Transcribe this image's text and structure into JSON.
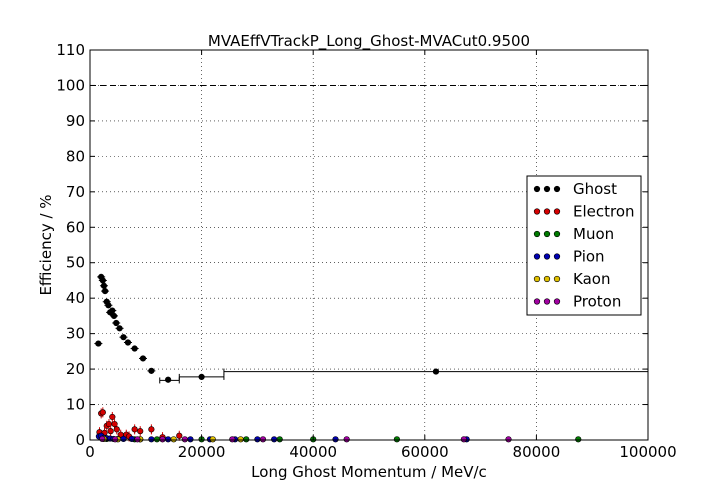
{
  "chart_data": {
    "type": "scatter",
    "title": "MVAEffVTrackP_Long_Ghost-MVACut0.9500",
    "xlabel": "Long Ghost Momentum / MeV/c",
    "ylabel": "Efficiency / %",
    "xlim": [
      0,
      100000
    ],
    "ylim": [
      0,
      110
    ],
    "x_ticks": [
      "0",
      "20000",
      "40000",
      "60000",
      "80000",
      "100000"
    ],
    "y_ticks": [
      "0",
      "10",
      "20",
      "30",
      "40",
      "50",
      "60",
      "70",
      "80",
      "90",
      "100",
      "110"
    ],
    "reference_line": {
      "y": 100,
      "style": "dashed"
    },
    "grid": true,
    "legend_position": "center-right",
    "series": [
      {
        "name": "Ghost",
        "color": "#000000",
        "points": [
          [
            1500,
            27.2
          ],
          [
            2000,
            46
          ],
          [
            2300,
            45
          ],
          [
            2500,
            43.5
          ],
          [
            2700,
            42
          ],
          [
            3000,
            39
          ],
          [
            3300,
            38
          ],
          [
            3600,
            36
          ],
          [
            4000,
            36.5
          ],
          [
            4300,
            35
          ],
          [
            4700,
            33
          ],
          [
            5300,
            31.5
          ],
          [
            6000,
            29
          ],
          [
            6800,
            27.5
          ],
          [
            8000,
            25.8
          ],
          [
            9500,
            23
          ],
          [
            11000,
            19.5
          ],
          [
            14000,
            17
          ],
          [
            20000,
            17.8
          ],
          [
            62000,
            19.3
          ]
        ],
        "bins": [
          [
            12500,
            16000,
            16.8
          ],
          [
            16000,
            24000,
            17.8
          ],
          [
            24000,
            100000,
            19.3
          ]
        ]
      },
      {
        "name": "Electron",
        "color": "#d40000",
        "points": [
          [
            1700,
            2.2
          ],
          [
            2000,
            7.5
          ],
          [
            2300,
            7.8
          ],
          [
            2600,
            2.0
          ],
          [
            3000,
            4.0
          ],
          [
            3400,
            4.5
          ],
          [
            3700,
            2.5
          ],
          [
            4000,
            6.5
          ],
          [
            4400,
            4.5
          ],
          [
            4800,
            3.0
          ],
          [
            5500,
            1.5
          ],
          [
            6500,
            1.5
          ],
          [
            7000,
            1.0
          ],
          [
            8000,
            3.0
          ],
          [
            9000,
            2.5
          ],
          [
            11000,
            3.0
          ],
          [
            13000,
            0.8
          ],
          [
            16000,
            1.2
          ]
        ]
      },
      {
        "name": "Muon",
        "color": "#007a00",
        "points": [
          [
            3000,
            0.3
          ],
          [
            8000,
            0.2
          ],
          [
            12000,
            0.2
          ],
          [
            20000,
            0.2
          ],
          [
            28000,
            0.2
          ],
          [
            34000,
            0.2
          ],
          [
            40000,
            0.2
          ],
          [
            55000,
            0.2
          ],
          [
            87500,
            0.2
          ]
        ]
      },
      {
        "name": "Pion",
        "color": "#0000b0",
        "points": [
          [
            1600,
            1.0
          ],
          [
            2000,
            1.2
          ],
          [
            2500,
            0.6
          ],
          [
            3000,
            0.5
          ],
          [
            3600,
            0.4
          ],
          [
            4200,
            0.3
          ],
          [
            5000,
            0.3
          ],
          [
            6000,
            0.3
          ],
          [
            7500,
            0.3
          ],
          [
            9000,
            0.2
          ],
          [
            11000,
            0.2
          ],
          [
            14000,
            0.2
          ],
          [
            18000,
            0.2
          ],
          [
            21500,
            0.2
          ],
          [
            26000,
            0.2
          ],
          [
            30000,
            0.2
          ],
          [
            33000,
            0.2
          ],
          [
            44000,
            0.2
          ],
          [
            67500,
            0.2
          ]
        ]
      },
      {
        "name": "Kaon",
        "color": "#e0c000",
        "points": [
          [
            2500,
            0.3
          ],
          [
            5000,
            0.2
          ],
          [
            9000,
            0.2
          ],
          [
            15000,
            0.2
          ],
          [
            22000,
            0.2
          ],
          [
            27000,
            0.2
          ]
        ]
      },
      {
        "name": "Proton",
        "color": "#a000a0",
        "points": [
          [
            2200,
            0.3
          ],
          [
            4500,
            0.2
          ],
          [
            8500,
            0.2
          ],
          [
            13000,
            0.2
          ],
          [
            17000,
            0.2
          ],
          [
            25500,
            0.2
          ],
          [
            31000,
            0.2
          ],
          [
            46000,
            0.2
          ],
          [
            67000,
            0.2
          ],
          [
            75000,
            0.2
          ]
        ]
      }
    ]
  }
}
